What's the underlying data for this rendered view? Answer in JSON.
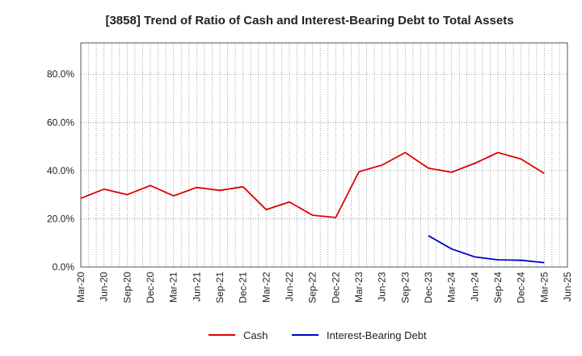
{
  "chart_data": {
    "type": "line",
    "title": "[3858]  Trend of Ratio of Cash and Interest-Bearing Debt to Total Assets",
    "xlabel": "",
    "ylabel": "",
    "x": [
      "Mar-20",
      "Jun-20",
      "Sep-20",
      "Dec-20",
      "Mar-21",
      "Jun-21",
      "Sep-21",
      "Dec-21",
      "Mar-22",
      "Jun-22",
      "Sep-22",
      "Dec-22",
      "Mar-23",
      "Jun-23",
      "Sep-23",
      "Dec-23",
      "Mar-24",
      "Jun-24",
      "Sep-24",
      "Dec-24",
      "Mar-25",
      "Jun-25"
    ],
    "ylim": [
      0,
      93
    ],
    "yticks": [
      0,
      20,
      40,
      60,
      80
    ],
    "ytick_labels": [
      "0.0%",
      "20.0%",
      "40.0%",
      "60.0%",
      "80.0%"
    ],
    "grid": true,
    "legend_position": "bottom",
    "series": [
      {
        "name": "Cash",
        "color": "#e00000",
        "values": [
          28.5,
          32.3,
          30.0,
          33.8,
          29.5,
          33.0,
          31.8,
          33.3,
          23.8,
          27.0,
          21.5,
          20.5,
          39.5,
          42.3,
          47.5,
          41.0,
          39.3,
          43.0,
          47.5,
          44.8,
          38.8,
          null
        ]
      },
      {
        "name": "Interest-Bearing Debt",
        "color": "#0000cc",
        "values": [
          null,
          null,
          null,
          null,
          null,
          null,
          null,
          null,
          null,
          null,
          null,
          null,
          null,
          null,
          null,
          13.0,
          7.5,
          4.2,
          3.0,
          2.8,
          1.8,
          null
        ]
      }
    ]
  }
}
